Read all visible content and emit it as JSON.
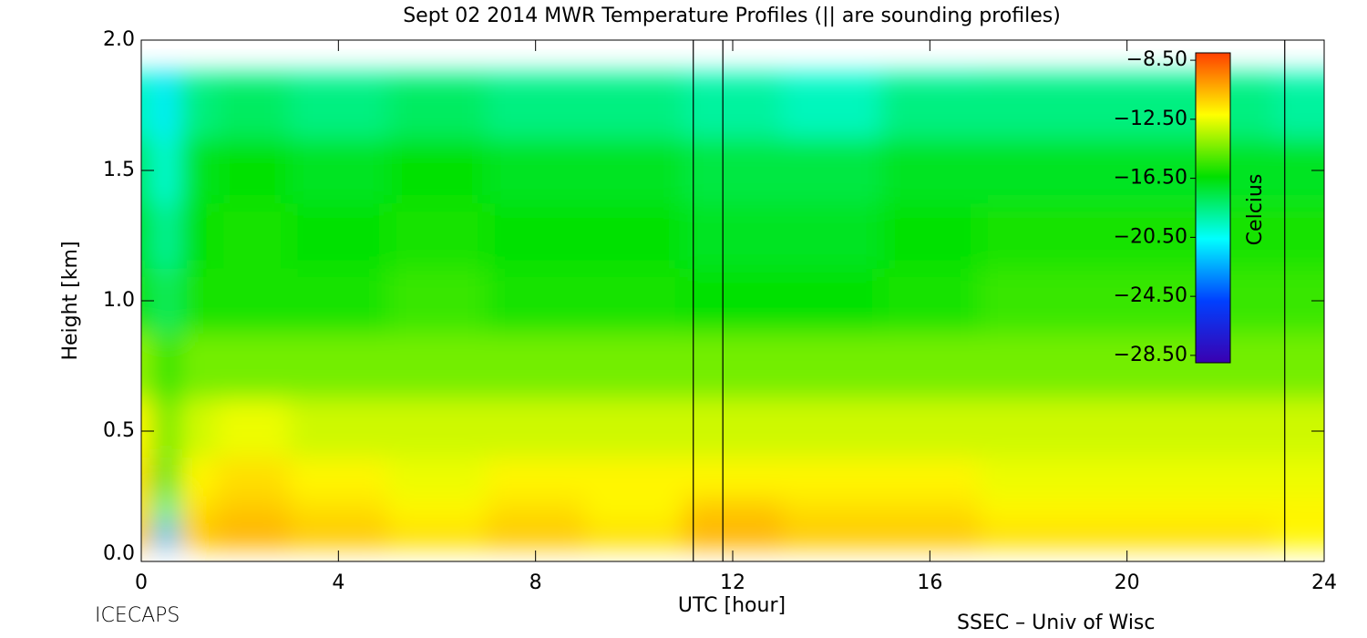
{
  "chart_data": {
    "type": "heatmap",
    "title": "Sept 02 2014 MWR Temperature Profiles (|| are sounding profiles)",
    "x_label": "UTC [hour]",
    "y_label": "Height [km]",
    "colorbar_label": "Celcius",
    "footer_left": "ICECAPS",
    "footer_right": "SSEC – Univ of Wisc",
    "x": [
      0,
      0.5,
      1,
      2,
      4,
      6,
      8,
      10,
      12,
      14,
      16,
      18,
      20,
      22,
      24
    ],
    "y": [
      0,
      0.1,
      0.2,
      0.3,
      0.5,
      0.75,
      1,
      1.25,
      1.5,
      1.75,
      2
    ],
    "z": [
      [
        -11,
        -25,
        -11,
        -10,
        -10.5,
        -11,
        -11,
        -11.5,
        -10.5,
        -10.5,
        -11,
        -11.5,
        -11.5,
        -11.5,
        -12
      ],
      [
        -11,
        -22,
        -11,
        -10.5,
        -11,
        -11.5,
        -11,
        -11.5,
        -10.5,
        -11,
        -11,
        -11.5,
        -11.5,
        -11.5,
        -12
      ],
      [
        -11.5,
        -19,
        -11.5,
        -11,
        -11.5,
        -12,
        -11.5,
        -12,
        -11,
        -11.5,
        -11.5,
        -12,
        -12,
        -12,
        -12
      ],
      [
        -11.5,
        -17,
        -12,
        -11.5,
        -12,
        -12.5,
        -12,
        -12,
        -12,
        -12,
        -12,
        -12.5,
        -12.5,
        -12.5,
        -12.5
      ],
      [
        -12,
        -15,
        -13,
        -12.5,
        -13,
        -13,
        -13,
        -13,
        -13,
        -13,
        -13,
        -13,
        -13,
        -13,
        -13
      ],
      [
        -14,
        -16,
        -14.5,
        -14.5,
        -14.5,
        -14.5,
        -14.5,
        -14.5,
        -14.5,
        -14.5,
        -14.5,
        -14.5,
        -14.5,
        -14.5,
        -14.5
      ],
      [
        -16,
        -18,
        -16,
        -16,
        -16,
        -15.5,
        -16,
        -16,
        -16.5,
        -16.5,
        -16,
        -15.5,
        -15.5,
        -15.5,
        -15.5
      ],
      [
        -17,
        -19,
        -16.5,
        -16,
        -16.5,
        -16,
        -16.5,
        -16.5,
        -17,
        -17,
        -16.5,
        -16,
        -16,
        -16,
        -16
      ],
      [
        -18,
        -20,
        -17,
        -16.5,
        -17,
        -16.5,
        -17,
        -17,
        -17.5,
        -17.5,
        -17,
        -17,
        -17,
        -17,
        -17
      ],
      [
        -19.5,
        -21,
        -18.5,
        -18,
        -18.5,
        -18,
        -18.5,
        -18.5,
        -19,
        -19.5,
        -18.5,
        -18.5,
        -18.5,
        -18.5,
        -19
      ],
      [
        -20.5,
        -22,
        -19.5,
        -19.5,
        -19.5,
        -19.5,
        -19.5,
        -19.5,
        -20,
        -20.5,
        -20,
        -19.5,
        -19.5,
        -19.5,
        -20
      ]
    ],
    "xlim": [
      0,
      24
    ],
    "xticks": [
      0,
      4,
      8,
      12,
      16,
      20,
      24
    ],
    "ylim": [
      0,
      2
    ],
    "yticks": [
      {
        "value": 0,
        "label": "0.0"
      },
      {
        "value": 0.5,
        "label": "0.5"
      },
      {
        "value": 1,
        "label": "1.0"
      },
      {
        "value": 1.5,
        "label": "1.5"
      },
      {
        "value": 2,
        "label": "2.0"
      }
    ],
    "zlim": [
      -29,
      -8
    ],
    "zticks": [
      {
        "value": -8.5,
        "label": "−8.50"
      },
      {
        "value": -12.5,
        "label": "−12.50"
      },
      {
        "value": -16.5,
        "label": "−16.50"
      },
      {
        "value": -20.5,
        "label": "−20.50"
      },
      {
        "value": -24.5,
        "label": "−24.50"
      },
      {
        "value": -28.5,
        "label": "−28.50"
      }
    ],
    "colormap": [
      "#3a00b0",
      "#0040ff",
      "#00ffff",
      "#00e000",
      "#ffff00",
      "#ff4000"
    ],
    "sounding_times": [
      11.2,
      11.8,
      23.2
    ]
  }
}
